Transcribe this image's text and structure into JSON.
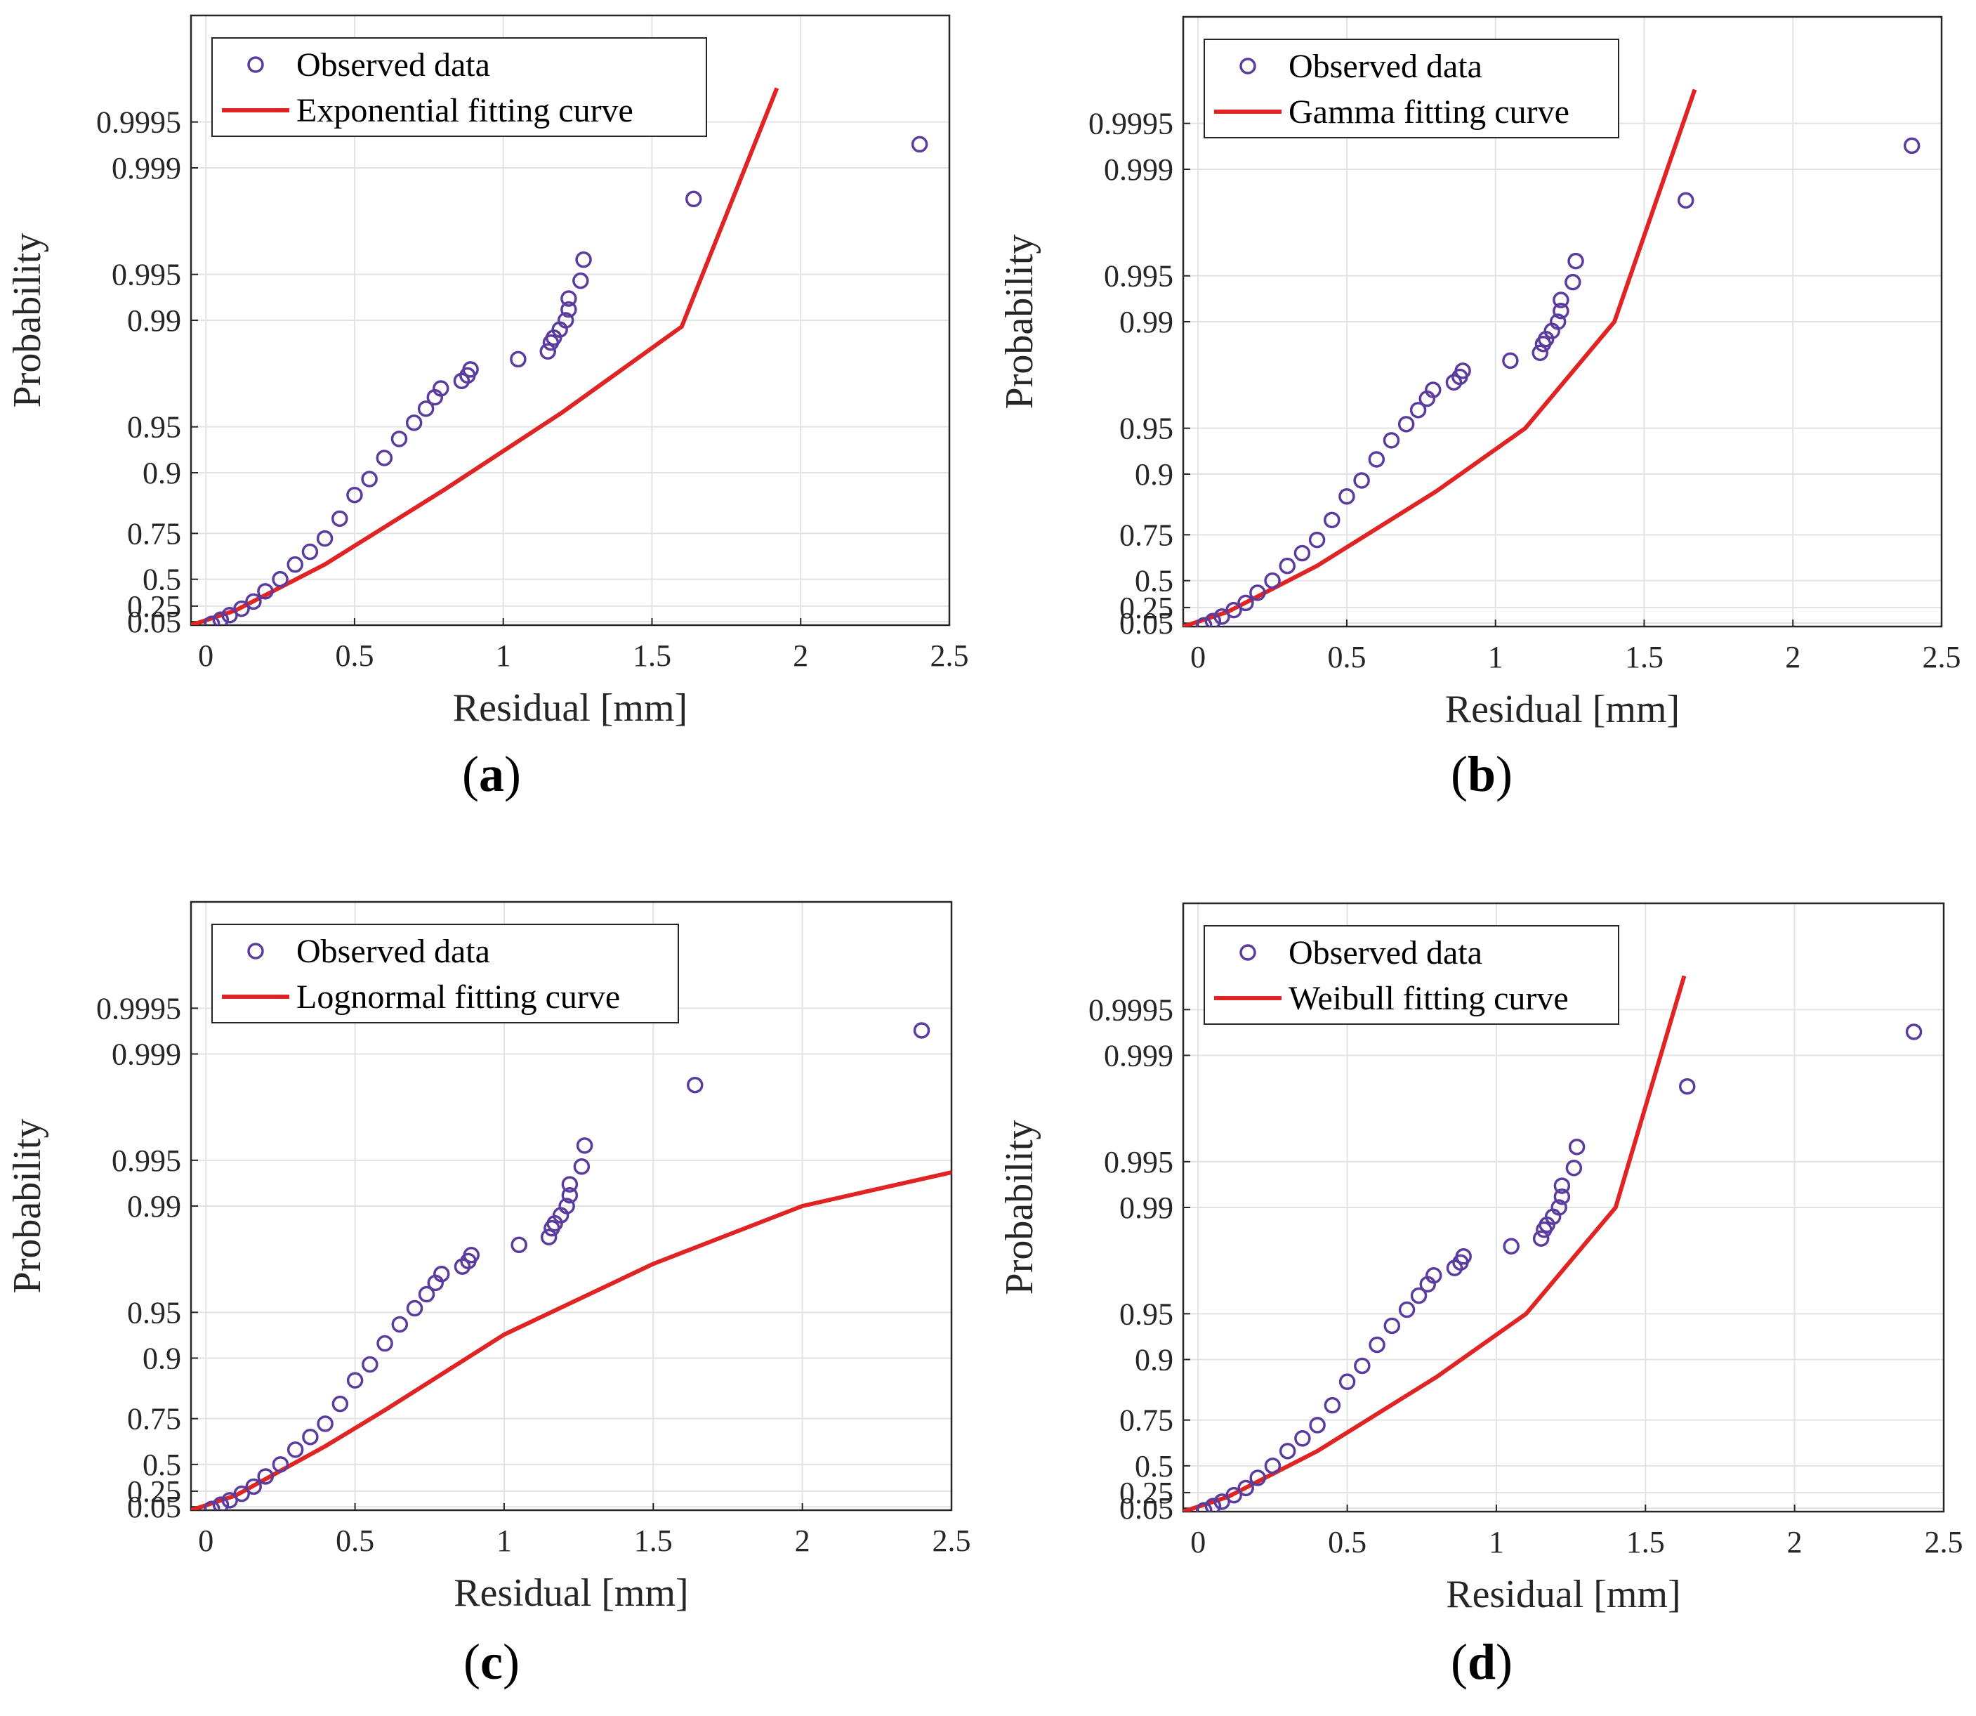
{
  "colors": {
    "observed": "#5b3c9e",
    "fit": "#e02424",
    "grid": "#e3e3e3",
    "axis": "#262626"
  },
  "chart_data": [
    {
      "id": "a",
      "type": "scatter",
      "panel_label_open": "(",
      "panel_label_letter": "a",
      "panel_label_close": ")",
      "xlabel": "Residual [mm]",
      "ylabel": "Probability",
      "xlim": [
        -0.05,
        2.5
      ],
      "x_ticks": [
        "0",
        "0.5",
        "1",
        "1.5",
        "2",
        "2.5"
      ],
      "y_ticks": [
        "0.9995",
        "0.999",
        "0.995",
        "0.99",
        "0.95",
        "0.9",
        "0.75",
        "0.5",
        "0.25",
        "0.05"
      ],
      "y_scale": "exponential probability",
      "grid": true,
      "legend_position": "top-left",
      "series": [
        {
          "name": "Observed data",
          "marker": "open-circle"
        },
        {
          "name": "Exponential fitting curve",
          "line": "solid"
        }
      ],
      "fit_curve": {
        "model": "exponential",
        "x": [
          -0.05,
          0.1,
          0.4,
          0.8,
          1.2,
          1.6,
          1.92
        ],
        "y": [
          0.0,
          0.2,
          0.6,
          0.87,
          0.96,
          0.989,
          0.9997
        ]
      }
    },
    {
      "id": "b",
      "type": "scatter",
      "panel_label_open": "(",
      "panel_label_letter": "b",
      "panel_label_close": ")",
      "xlabel": "Residual [mm]",
      "ylabel": "Probability",
      "xlim": [
        -0.05,
        2.5
      ],
      "x_ticks": [
        "0",
        "0.5",
        "1",
        "1.5",
        "2",
        "2.5"
      ],
      "y_ticks": [
        "0.9995",
        "0.999",
        "0.995",
        "0.99",
        "0.95",
        "0.9",
        "0.75",
        "0.5",
        "0.25",
        "0.05"
      ],
      "y_scale": "gamma probability",
      "grid": true,
      "legend_position": "top-left",
      "series": [
        {
          "name": "Observed data",
          "marker": "open-circle"
        },
        {
          "name": "Gamma fitting curve",
          "line": "solid"
        }
      ],
      "fit_curve": {
        "model": "gamma",
        "x": [
          -0.05,
          0.1,
          0.4,
          0.8,
          1.1,
          1.4,
          1.67
        ],
        "y": [
          0.0,
          0.2,
          0.6,
          0.87,
          0.95,
          0.99,
          0.9997
        ]
      }
    },
    {
      "id": "c",
      "type": "scatter",
      "panel_label_open": "(",
      "panel_label_letter": "c",
      "panel_label_close": ")",
      "xlabel": "Residual [mm]",
      "ylabel": "Probability",
      "xlim": [
        -0.05,
        2.5
      ],
      "x_ticks": [
        "0",
        "0.5",
        "1",
        "1.5",
        "2",
        "2.5"
      ],
      "y_ticks": [
        "0.9995",
        "0.999",
        "0.995",
        "0.99",
        "0.95",
        "0.9",
        "0.75",
        "0.5",
        "0.25",
        "0.05"
      ],
      "y_scale": "lognormal probability",
      "grid": true,
      "legend_position": "top-left",
      "series": [
        {
          "name": "Observed data",
          "marker": "open-circle"
        },
        {
          "name": "Lognormal fitting curve",
          "line": "solid"
        }
      ],
      "fit_curve": {
        "model": "lognormal",
        "x": [
          -0.05,
          0.1,
          0.4,
          0.6,
          1.0,
          1.5,
          2.0,
          2.5
        ],
        "y": [
          0.0,
          0.2,
          0.62,
          0.78,
          0.93,
          0.976,
          0.99,
          0.994
        ]
      }
    },
    {
      "id": "d",
      "type": "scatter",
      "panel_label_open": "(",
      "panel_label_letter": "d",
      "panel_label_close": ")",
      "xlabel": "Residual [mm]",
      "ylabel": "Probability",
      "xlim": [
        -0.05,
        2.5
      ],
      "x_ticks": [
        "0",
        "0.5",
        "1",
        "1.5",
        "2",
        "2.5"
      ],
      "y_ticks": [
        "0.9995",
        "0.999",
        "0.995",
        "0.99",
        "0.95",
        "0.9",
        "0.75",
        "0.5",
        "0.25",
        "0.05"
      ],
      "y_scale": "weibull probability",
      "grid": true,
      "legend_position": "top-left",
      "series": [
        {
          "name": "Observed data",
          "marker": "open-circle"
        },
        {
          "name": "Weibull fitting curve",
          "line": "solid"
        }
      ],
      "fit_curve": {
        "model": "weibull",
        "x": [
          -0.05,
          0.1,
          0.4,
          0.8,
          1.1,
          1.4,
          1.63
        ],
        "y": [
          0.0,
          0.2,
          0.6,
          0.87,
          0.95,
          0.99,
          0.9997
        ]
      }
    }
  ],
  "observed_points": {
    "x": [
      0.02,
      0.05,
      0.08,
      0.12,
      0.16,
      0.2,
      0.25,
      0.3,
      0.35,
      0.4,
      0.45,
      0.5,
      0.55,
      0.6,
      0.65,
      0.7,
      0.74,
      0.77,
      0.79,
      0.86,
      0.88,
      0.89,
      1.05,
      1.15,
      1.16,
      1.17,
      1.19,
      1.21,
      1.22,
      1.22,
      1.26,
      1.27,
      1.64,
      2.4
    ],
    "y": [
      0.02,
      0.08,
      0.14,
      0.22,
      0.3,
      0.4,
      0.5,
      0.6,
      0.67,
      0.73,
      0.8,
      0.86,
      0.89,
      0.92,
      0.94,
      0.953,
      0.962,
      0.968,
      0.972,
      0.975,
      0.977,
      0.979,
      0.982,
      0.984,
      0.986,
      0.987,
      0.9885,
      0.99,
      0.9915,
      0.9928,
      0.9945,
      0.996,
      0.9984,
      0.9993
    ]
  }
}
